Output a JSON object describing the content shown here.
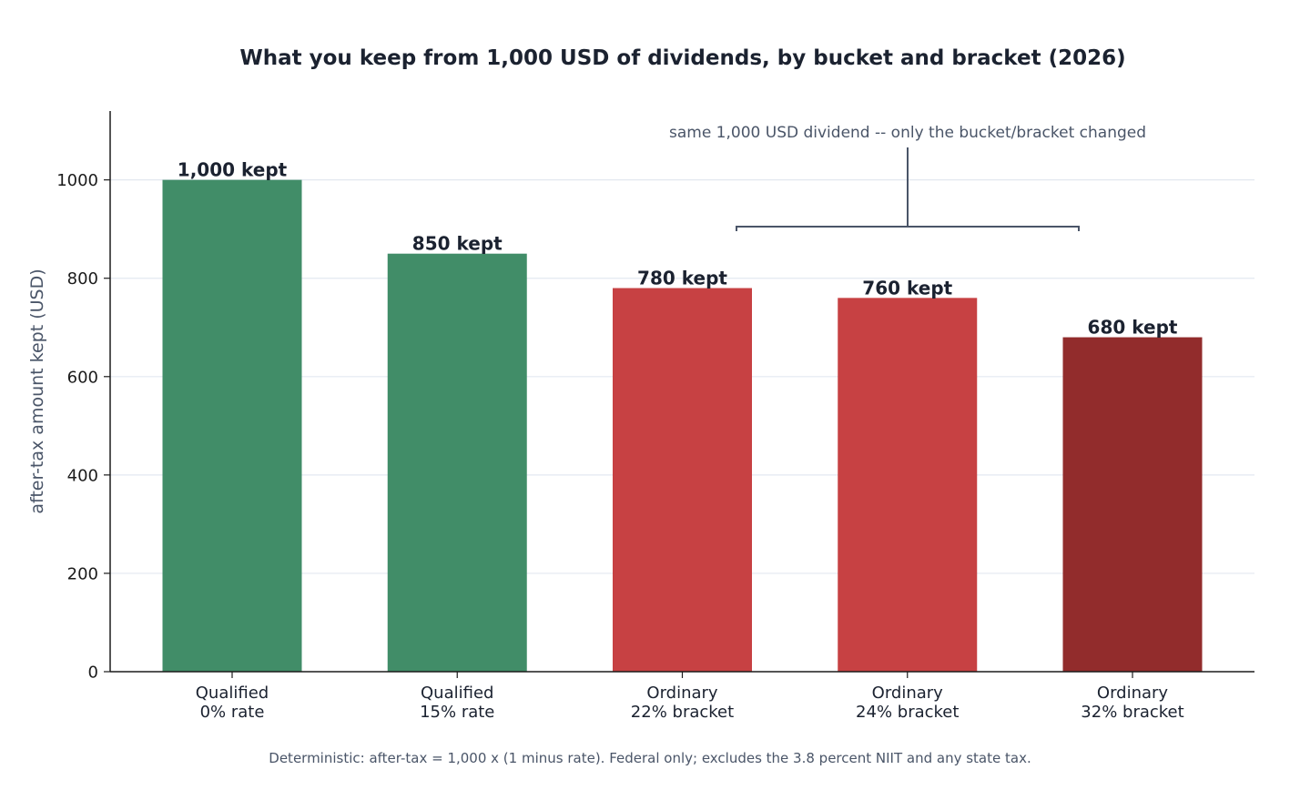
{
  "chart_data": {
    "type": "bar",
    "title": "What you keep from 1,000 USD of dividends, by bucket and bracket (2026)",
    "xlabel": "",
    "ylabel": "after-tax amount kept (USD)",
    "ylim": [
      0,
      1140
    ],
    "yticks": [
      0,
      200,
      400,
      600,
      800,
      1000
    ],
    "grid": "horizontal",
    "categories": [
      [
        "Qualified",
        "0% rate"
      ],
      [
        "Qualified",
        "15% rate"
      ],
      [
        "Ordinary",
        "22% bracket"
      ],
      [
        "Ordinary",
        "24% bracket"
      ],
      [
        "Ordinary",
        "32% bracket"
      ]
    ],
    "values": [
      1000,
      850,
      780,
      760,
      680
    ],
    "data_labels": [
      "1,000 kept",
      "850 kept",
      "780 kept",
      "760 kept",
      "680 kept"
    ],
    "colors": [
      "#418d68",
      "#418d68",
      "#c74143",
      "#c74143",
      "#922c2c"
    ],
    "annotation": {
      "text": "same 1,000 USD dividend -- only the bucket/bracket changed",
      "bracket_from_value": 905,
      "color": "#4a5568"
    },
    "footnote": "Deterministic: after-tax = 1,000 x (1 minus rate). Federal only; excludes the 3.8 percent NIIT and any state tax."
  }
}
